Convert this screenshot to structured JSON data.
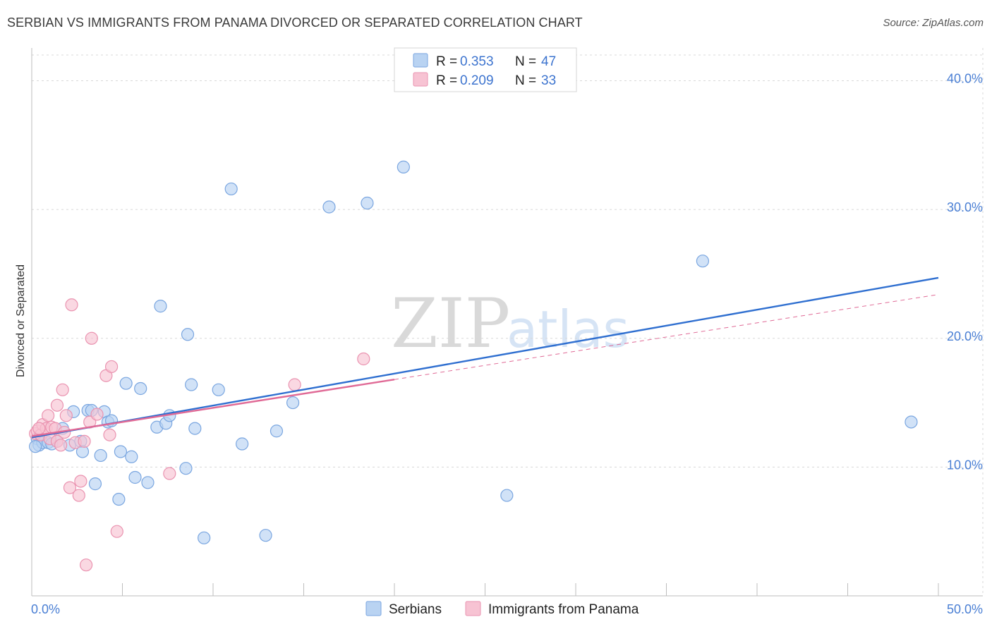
{
  "header": {
    "title": "SERBIAN VS IMMIGRANTS FROM PANAMA DIVORCED OR SEPARATED CORRELATION CHART",
    "source": "Source: ZipAtlas.com"
  },
  "watermark": {
    "zip": "ZIP",
    "atlas": "atlas"
  },
  "colors": {
    "serbians_fill": "#b9d3f2",
    "serbians_stroke": "#7aa6e0",
    "serbians_line": "#2f6fd0",
    "panama_fill": "#f7c3d3",
    "panama_stroke": "#ea93b0",
    "panama_line": "#e06a96",
    "grid": "#d8d8d8",
    "tick_text": "#4a7fd4"
  },
  "legend": {
    "r_label": "R =",
    "n_label": "N =",
    "serbians": {
      "r": "0.353",
      "n": "47"
    },
    "panama": {
      "r": "0.209",
      "n": "33"
    }
  },
  "chart_data": {
    "type": "scatter",
    "title": "SERBIAN VS IMMIGRANTS FROM PANAMA DIVORCED OR SEPARATED CORRELATION CHART",
    "xlabel": "",
    "ylabel": "Divorced or Separated",
    "xlim": [
      0,
      50
    ],
    "ylim": [
      0,
      42
    ],
    "x_tick_labels": {
      "left": "0.0%",
      "right": "50.0%"
    },
    "y_ticks": [
      {
        "value": 10,
        "label": "10.0%"
      },
      {
        "value": 20,
        "label": "20.0%"
      },
      {
        "value": 30,
        "label": "30.0%"
      },
      {
        "value": 40,
        "label": "40.0%"
      }
    ],
    "series": [
      {
        "name": "Serbians",
        "points": [
          [
            0.3,
            12.2
          ],
          [
            0.4,
            11.7
          ],
          [
            0.6,
            11.9
          ],
          [
            0.9,
            11.9
          ],
          [
            1.1,
            11.8
          ],
          [
            1.4,
            12.0
          ],
          [
            1.7,
            13.0
          ],
          [
            2.1,
            11.7
          ],
          [
            2.3,
            14.3
          ],
          [
            2.7,
            12.0
          ],
          [
            2.8,
            11.2
          ],
          [
            3.1,
            14.4
          ],
          [
            3.3,
            14.4
          ],
          [
            3.5,
            8.7
          ],
          [
            3.8,
            10.9
          ],
          [
            4.0,
            14.3
          ],
          [
            4.2,
            13.5
          ],
          [
            4.4,
            13.6
          ],
          [
            4.8,
            7.5
          ],
          [
            4.9,
            11.2
          ],
          [
            5.2,
            16.5
          ],
          [
            5.5,
            10.8
          ],
          [
            5.7,
            9.2
          ],
          [
            6.0,
            16.1
          ],
          [
            6.4,
            8.8
          ],
          [
            6.9,
            13.1
          ],
          [
            7.1,
            22.5
          ],
          [
            7.4,
            13.4
          ],
          [
            7.6,
            14.0
          ],
          [
            8.5,
            9.9
          ],
          [
            8.6,
            20.3
          ],
          [
            8.8,
            16.4
          ],
          [
            9.0,
            13.0
          ],
          [
            9.5,
            4.5
          ],
          [
            10.3,
            16.0
          ],
          [
            11.0,
            31.6
          ],
          [
            11.6,
            11.8
          ],
          [
            12.9,
            4.7
          ],
          [
            13.5,
            12.8
          ],
          [
            14.4,
            15.0
          ],
          [
            16.4,
            30.2
          ],
          [
            18.5,
            30.5
          ],
          [
            20.5,
            33.3
          ],
          [
            26.2,
            7.8
          ],
          [
            37.0,
            26.0
          ],
          [
            48.5,
            13.5
          ],
          [
            0.2,
            11.6
          ]
        ]
      },
      {
        "name": "Immigrants from Panama",
        "points": [
          [
            0.2,
            12.6
          ],
          [
            0.3,
            12.8
          ],
          [
            0.5,
            12.5
          ],
          [
            0.6,
            13.3
          ],
          [
            0.8,
            13.0
          ],
          [
            0.9,
            14.0
          ],
          [
            1.0,
            12.2
          ],
          [
            1.1,
            13.1
          ],
          [
            1.3,
            13.0
          ],
          [
            1.4,
            12.0
          ],
          [
            1.4,
            14.8
          ],
          [
            1.6,
            11.7
          ],
          [
            1.7,
            16.0
          ],
          [
            1.8,
            12.7
          ],
          [
            1.9,
            14.0
          ],
          [
            2.1,
            8.4
          ],
          [
            2.2,
            22.6
          ],
          [
            2.4,
            11.9
          ],
          [
            2.6,
            7.8
          ],
          [
            2.7,
            8.9
          ],
          [
            2.9,
            12.0
          ],
          [
            3.0,
            2.4
          ],
          [
            3.2,
            13.5
          ],
          [
            3.3,
            20.0
          ],
          [
            3.6,
            14.1
          ],
          [
            4.1,
            17.1
          ],
          [
            4.3,
            12.5
          ],
          [
            4.4,
            17.8
          ],
          [
            4.7,
            5.0
          ],
          [
            7.6,
            9.5
          ],
          [
            14.5,
            16.4
          ],
          [
            18.3,
            18.4
          ],
          [
            0.4,
            13.0
          ]
        ]
      }
    ],
    "trend_lines": [
      {
        "series": "Serbians",
        "x": [
          0,
          50
        ],
        "y": [
          12.3,
          24.7
        ],
        "style": "solid"
      },
      {
        "series": "Immigrants from Panama",
        "x": [
          0,
          20
        ],
        "y": [
          12.4,
          16.8
        ],
        "style": "solid"
      },
      {
        "series": "Immigrants from Panama",
        "x": [
          20,
          50
        ],
        "y": [
          16.8,
          23.4
        ],
        "style": "dashed"
      }
    ],
    "legend_position": "top-center",
    "bottom_legend": [
      "Serbians",
      "Immigrants from Panama"
    ]
  }
}
